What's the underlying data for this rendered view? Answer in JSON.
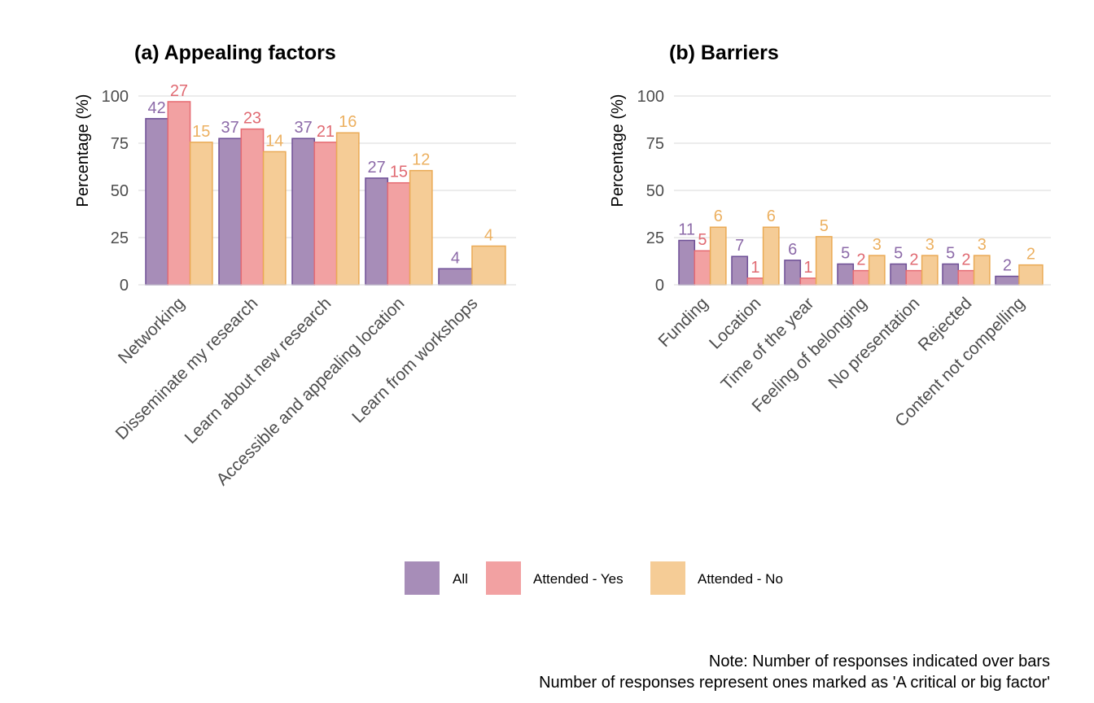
{
  "colors": {
    "All": {
      "fill": "#a78db8",
      "stroke": "#6e4f96",
      "label": "#8c6aa8"
    },
    "Attended - Yes": {
      "fill": "#f2a1a2",
      "stroke": "#e66b72",
      "label": "#e06a72"
    },
    "Attended - No": {
      "fill": "#f5cc96",
      "stroke": "#eaaa55",
      "label": "#ecb060"
    }
  },
  "legend": {
    "items": [
      "All",
      "Attended - Yes",
      "Attended - No"
    ]
  },
  "note": {
    "line1": "Note: Number of responses indicated over bars",
    "line2": "Number of responses represent ones marked as 'A critical or big factor'"
  },
  "chart_data": [
    {
      "type": "bar",
      "title": "(a) Appealing factors",
      "ylabel": "Percentage (%)",
      "ylim": [
        0,
        100
      ],
      "yticks": [
        0,
        25,
        50,
        75,
        100
      ],
      "grid": true,
      "legend_position": "bottom",
      "categories": [
        "Networking",
        "Disseminate my research",
        "Learn about new research",
        "Accessible and appealing location",
        "Learn from workshops"
      ],
      "series": [
        {
          "name": "All",
          "values": [
            88,
            77.5,
            77.5,
            56.5,
            8.5
          ],
          "counts": [
            42,
            37,
            37,
            27,
            4
          ]
        },
        {
          "name": "Attended - Yes",
          "values": [
            97,
            82.5,
            75.5,
            54,
            null
          ],
          "counts": [
            27,
            23,
            21,
            15,
            null
          ]
        },
        {
          "name": "Attended - No",
          "values": [
            75.5,
            70.5,
            80.5,
            60.5,
            20.5
          ],
          "counts": [
            15,
            14,
            16,
            12,
            4
          ]
        }
      ]
    },
    {
      "type": "bar",
      "title": "(b) Barriers",
      "ylabel": "Percentage (%)",
      "ylim": [
        0,
        100
      ],
      "yticks": [
        0,
        25,
        50,
        75,
        100
      ],
      "grid": true,
      "legend_position": "bottom",
      "categories": [
        "Funding",
        "Location",
        "Time of the year",
        "Feeling of belonging",
        "No presentation",
        "Rejected",
        "Content not compelling"
      ],
      "series": [
        {
          "name": "All",
          "values": [
            23.5,
            15,
            13,
            11,
            11,
            11,
            4.5
          ],
          "counts": [
            11,
            7,
            6,
            5,
            5,
            5,
            2
          ]
        },
        {
          "name": "Attended - Yes",
          "values": [
            18,
            3.5,
            3.5,
            7.5,
            7.5,
            7.5,
            null
          ],
          "counts": [
            5,
            1,
            1,
            2,
            2,
            2,
            null
          ]
        },
        {
          "name": "Attended - No",
          "values": [
            30.5,
            30.5,
            25.5,
            15.5,
            15.5,
            15.5,
            10.5
          ],
          "counts": [
            6,
            6,
            5,
            3,
            3,
            3,
            2
          ]
        }
      ]
    }
  ]
}
